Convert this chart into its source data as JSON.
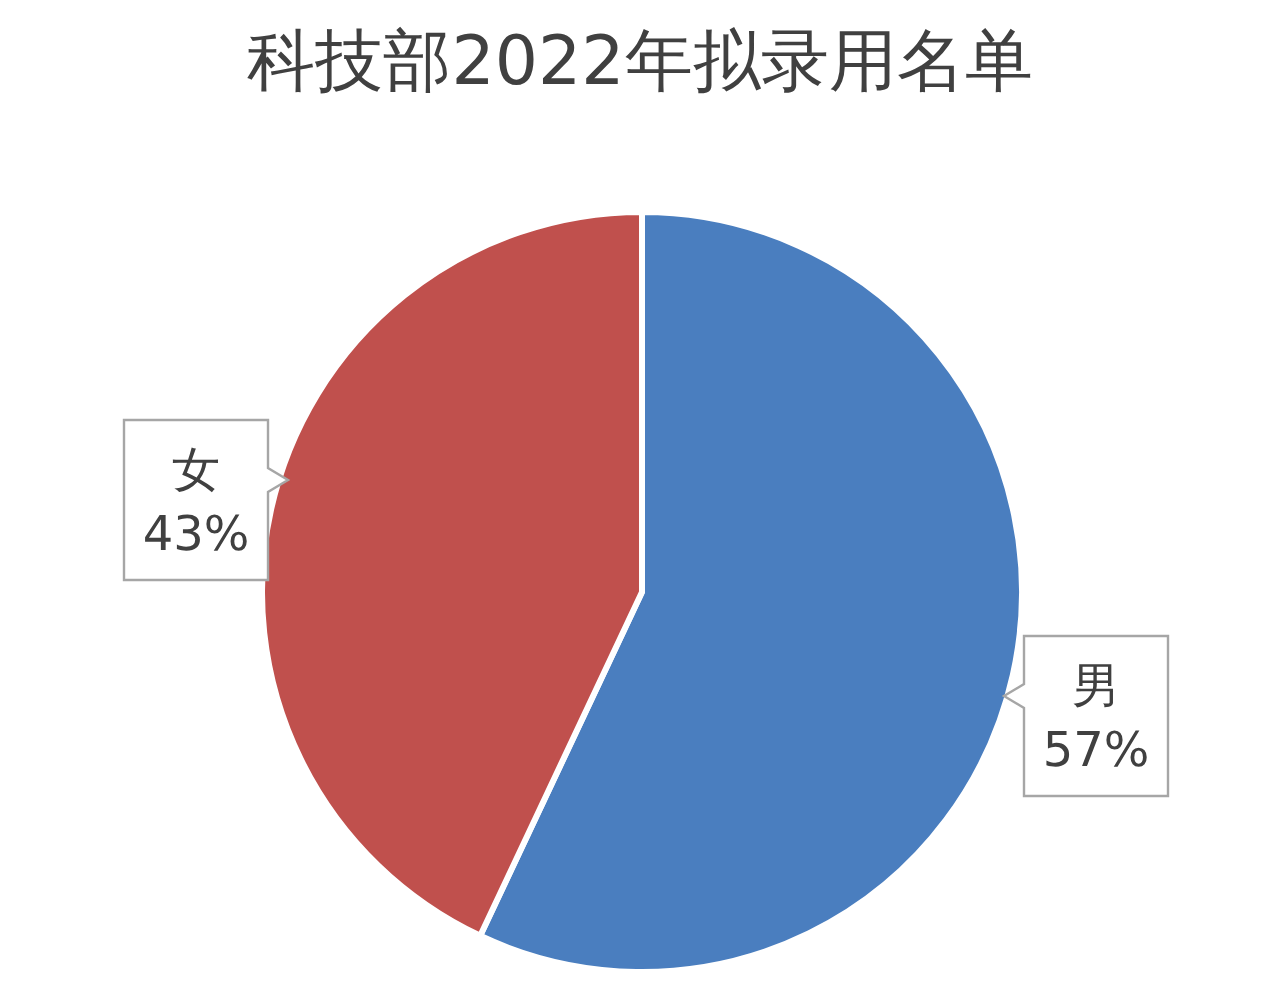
{
  "chart_data": {
    "type": "pie",
    "title": "科技部2022年拟录用名单",
    "categories": [
      "男",
      "女"
    ],
    "values": [
      57,
      43
    ],
    "colors": [
      "#4a7ebf",
      "#c0504d"
    ],
    "value_labels": [
      "57%",
      "43%"
    ]
  }
}
